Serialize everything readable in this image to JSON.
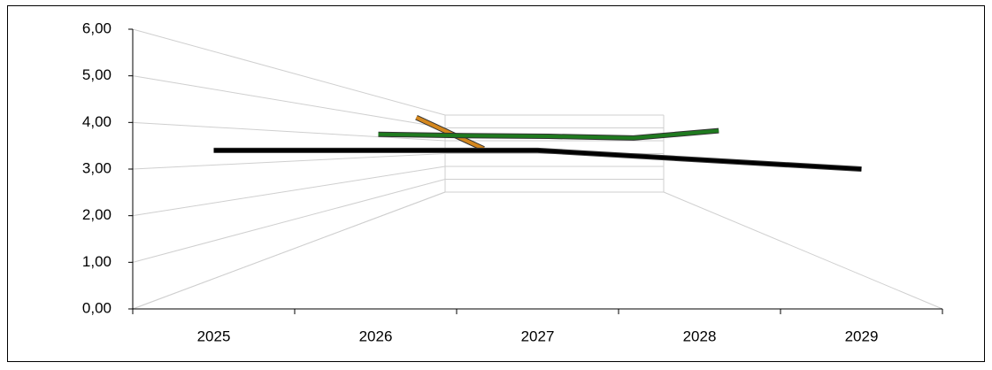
{
  "chart_data": {
    "type": "line3d",
    "categories": [
      "2025",
      "2026",
      "2027",
      "2028",
      "2029"
    ],
    "series": [
      {
        "color": "#000000",
        "values": [
          3.4,
          3.4,
          3.4,
          3.2,
          3.0
        ]
      },
      {
        "color": "#1f7a1f",
        "values": [
          4.0,
          3.95,
          3.92,
          3.85,
          4.15
        ]
      },
      {
        "color": "#d4871e",
        "values": [
          5.0,
          3.4,
          null,
          null,
          null
        ]
      }
    ],
    "ylim": [
      0,
      6
    ],
    "yticks": [
      {
        "value": 0,
        "label": "0,00"
      },
      {
        "value": 1,
        "label": "1,00"
      },
      {
        "value": 2,
        "label": "2,00"
      },
      {
        "value": 3,
        "label": "3,00"
      },
      {
        "value": 4,
        "label": "4,00"
      },
      {
        "value": 5,
        "label": "5,00"
      },
      {
        "value": 6,
        "label": "6,00"
      }
    ],
    "grid": true
  }
}
